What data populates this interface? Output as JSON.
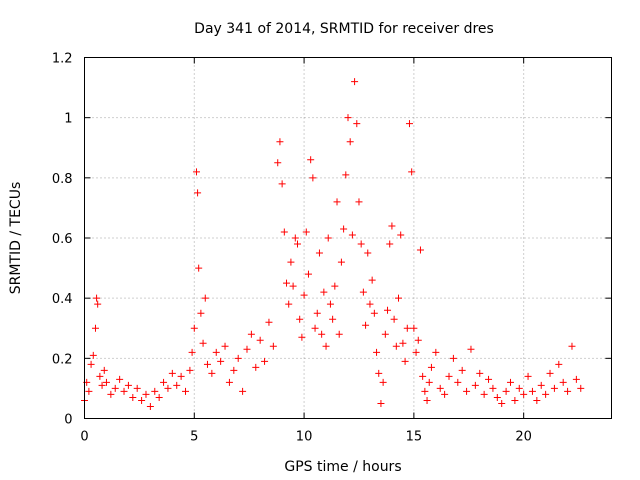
{
  "chart_data": {
    "type": "scatter",
    "title": "Day 341 of 2014, SRMTID for receiver dres",
    "xlabel": "GPS time / hours",
    "ylabel": "SRMTID / TECUs",
    "xlim": [
      0,
      24
    ],
    "ylim": [
      0,
      1.2
    ],
    "xticks": [
      0,
      5,
      10,
      15,
      20
    ],
    "xtick_labels": [
      "0",
      "5",
      "10",
      "15",
      "20"
    ],
    "yticks": [
      0,
      0.2,
      0.4,
      0.6,
      0.8,
      1.0,
      1.2
    ],
    "ytick_labels": [
      "0",
      "0.2",
      "0.4",
      "0.6",
      "0.8",
      "1",
      "1.2"
    ],
    "grid": true,
    "marker": "+",
    "color": "#ff0000",
    "series": [
      {
        "name": "dres",
        "x": [
          0.0,
          0.1,
          0.2,
          0.3,
          0.4,
          0.5,
          0.55,
          0.6,
          0.7,
          0.8,
          0.9,
          1.0,
          1.2,
          1.4,
          1.6,
          1.8,
          2.0,
          2.2,
          2.4,
          2.6,
          2.8,
          3.0,
          3.2,
          3.4,
          3.6,
          3.8,
          4.0,
          4.2,
          4.4,
          4.6,
          4.8,
          4.9,
          5.0,
          5.1,
          5.15,
          5.2,
          5.3,
          5.4,
          5.5,
          5.6,
          5.8,
          6.0,
          6.2,
          6.4,
          6.6,
          6.8,
          7.0,
          7.2,
          7.4,
          7.6,
          7.8,
          8.0,
          8.2,
          8.4,
          8.6,
          8.8,
          8.9,
          9.0,
          9.1,
          9.2,
          9.3,
          9.4,
          9.5,
          9.6,
          9.7,
          9.8,
          9.9,
          10.0,
          10.1,
          10.2,
          10.3,
          10.4,
          10.5,
          10.6,
          10.7,
          10.8,
          10.9,
          11.0,
          11.1,
          11.2,
          11.3,
          11.4,
          11.5,
          11.6,
          11.7,
          11.8,
          11.9,
          12.0,
          12.1,
          12.2,
          12.3,
          12.4,
          12.5,
          12.6,
          12.7,
          12.8,
          12.9,
          13.0,
          13.1,
          13.2,
          13.3,
          13.4,
          13.5,
          13.6,
          13.7,
          13.8,
          13.9,
          14.0,
          14.1,
          14.2,
          14.3,
          14.4,
          14.5,
          14.6,
          14.7,
          14.8,
          14.9,
          15.0,
          15.1,
          15.2,
          15.3,
          15.4,
          15.5,
          15.6,
          15.7,
          15.8,
          16.0,
          16.2,
          16.4,
          16.6,
          16.8,
          17.0,
          17.2,
          17.4,
          17.6,
          17.8,
          18.0,
          18.2,
          18.4,
          18.6,
          18.8,
          19.0,
          19.2,
          19.4,
          19.6,
          19.8,
          20.0,
          20.2,
          20.4,
          20.6,
          20.8,
          21.0,
          21.2,
          21.4,
          21.6,
          21.8,
          22.0,
          22.2,
          22.4,
          22.6
        ],
        "y": [
          0.06,
          0.12,
          0.09,
          0.18,
          0.21,
          0.3,
          0.4,
          0.38,
          0.14,
          0.11,
          0.16,
          0.12,
          0.08,
          0.1,
          0.13,
          0.09,
          0.11,
          0.07,
          0.1,
          0.06,
          0.08,
          0.04,
          0.09,
          0.07,
          0.12,
          0.1,
          0.15,
          0.11,
          0.14,
          0.09,
          0.16,
          0.22,
          0.3,
          0.82,
          0.75,
          0.5,
          0.35,
          0.25,
          0.4,
          0.18,
          0.15,
          0.22,
          0.19,
          0.24,
          0.12,
          0.16,
          0.2,
          0.09,
          0.23,
          0.28,
          0.17,
          0.26,
          0.19,
          0.32,
          0.24,
          0.85,
          0.92,
          0.78,
          0.62,
          0.45,
          0.38,
          0.52,
          0.44,
          0.6,
          0.58,
          0.33,
          0.27,
          0.41,
          0.62,
          0.48,
          0.86,
          0.8,
          0.3,
          0.35,
          0.55,
          0.28,
          0.42,
          0.24,
          0.6,
          0.38,
          0.33,
          0.44,
          0.72,
          0.28,
          0.52,
          0.63,
          0.81,
          1.0,
          0.92,
          0.61,
          1.12,
          0.98,
          0.72,
          0.58,
          0.42,
          0.31,
          0.55,
          0.38,
          0.46,
          0.35,
          0.22,
          0.15,
          0.05,
          0.12,
          0.28,
          0.36,
          0.58,
          0.64,
          0.33,
          0.24,
          0.4,
          0.61,
          0.25,
          0.19,
          0.3,
          0.98,
          0.82,
          0.3,
          0.22,
          0.26,
          0.56,
          0.14,
          0.09,
          0.06,
          0.12,
          0.17,
          0.22,
          0.1,
          0.08,
          0.14,
          0.2,
          0.12,
          0.16,
          0.09,
          0.23,
          0.11,
          0.15,
          0.08,
          0.13,
          0.1,
          0.07,
          0.05,
          0.09,
          0.12,
          0.06,
          0.1,
          0.08,
          0.14,
          0.09,
          0.06,
          0.11,
          0.08,
          0.15,
          0.1,
          0.18,
          0.12,
          0.09,
          0.24,
          0.13,
          0.1
        ]
      }
    ]
  }
}
